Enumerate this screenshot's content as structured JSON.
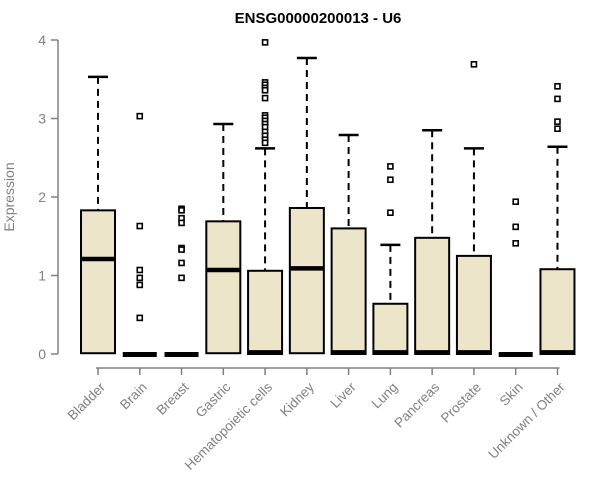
{
  "title": "ENSG00000200013 - U6",
  "chart_data": {
    "type": "boxplot",
    "title": "ENSG00000200013 - U6",
    "xlabel": "",
    "ylabel": "Expression",
    "ylim": [
      0,
      4
    ],
    "yticks": [
      0,
      1,
      2,
      3,
      4
    ],
    "grid": false,
    "legend": "none",
    "box_fill": "#ece5c9",
    "box_stroke": "#000000",
    "axis_color": "#808080",
    "title_color": "#000000",
    "categories": [
      "Bladder",
      "Brain",
      "Breast",
      "Gastric",
      "Hematopoietic cells",
      "Kidney",
      "Liver",
      "Lung",
      "Pancreas",
      "Prostate",
      "Skin",
      "Unknown / Other"
    ],
    "series": [
      {
        "label": "Bladder",
        "whisker_low": 0,
        "q1": 0.01,
        "median": 1.21,
        "q3": 1.83,
        "whisker_high": 3.53,
        "outliers": []
      },
      {
        "label": "Brain",
        "whisker_low": 0,
        "q1": 0.0,
        "median": 0.01,
        "q3": 0.02,
        "whisker_high": 0.02,
        "outliers": [
          3.03,
          1.63,
          1.07,
          0.97,
          0.88,
          0.46
        ]
      },
      {
        "label": "Breast",
        "whisker_low": 0,
        "q1": 0.0,
        "median": 0.01,
        "q3": 0.02,
        "whisker_high": 0.02,
        "outliers": [
          1.85,
          1.83,
          1.73,
          1.67,
          1.35,
          1.33,
          1.16,
          0.97
        ]
      },
      {
        "label": "Gastric",
        "whisker_low": 0,
        "q1": 0.01,
        "median": 1.07,
        "q3": 1.69,
        "whisker_high": 2.93,
        "outliers": []
      },
      {
        "label": "Hematopoietic cells",
        "whisker_low": 0,
        "q1": 0.0,
        "median": 0.02,
        "q3": 1.06,
        "whisker_high": 2.62,
        "outliers": [
          3.97,
          3.46,
          3.43,
          3.39,
          3.36,
          3.26,
          3.04,
          3.01,
          2.97,
          2.93,
          2.89,
          2.83,
          2.78,
          2.73,
          2.69
        ]
      },
      {
        "label": "Kidney",
        "whisker_low": 0,
        "q1": 0.01,
        "median": 1.09,
        "q3": 1.86,
        "whisker_high": 3.77,
        "outliers": []
      },
      {
        "label": "Liver",
        "whisker_low": 0,
        "q1": 0.0,
        "median": 0.02,
        "q3": 1.6,
        "whisker_high": 2.79,
        "outliers": []
      },
      {
        "label": "Lung",
        "whisker_low": 0,
        "q1": 0.0,
        "median": 0.02,
        "q3": 0.64,
        "whisker_high": 1.39,
        "outliers": [
          2.39,
          2.22,
          1.8
        ]
      },
      {
        "label": "Pancreas",
        "whisker_low": 0,
        "q1": 0.0,
        "median": 0.02,
        "q3": 1.48,
        "whisker_high": 2.85,
        "outliers": []
      },
      {
        "label": "Prostate",
        "whisker_low": 0,
        "q1": 0.0,
        "median": 0.02,
        "q3": 1.25,
        "whisker_high": 2.62,
        "outliers": [
          3.69
        ]
      },
      {
        "label": "Skin",
        "whisker_low": 0,
        "q1": 0.0,
        "median": 0.01,
        "q3": 0.02,
        "whisker_high": 0.02,
        "outliers": [
          1.94,
          1.62,
          1.41
        ]
      },
      {
        "label": "Unknown / Other",
        "whisker_low": 0,
        "q1": 0.0,
        "median": 0.02,
        "q3": 1.08,
        "whisker_high": 2.64,
        "outliers": [
          3.41,
          3.25,
          2.96,
          2.87
        ]
      }
    ]
  }
}
